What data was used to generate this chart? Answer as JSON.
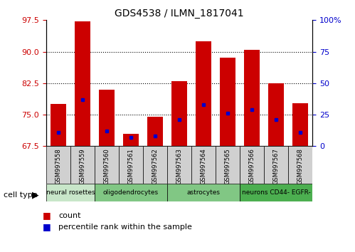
{
  "title": "GDS4538 / ILMN_1817041",
  "samples": [
    "GSM997558",
    "GSM997559",
    "GSM997560",
    "GSM997561",
    "GSM997562",
    "GSM997563",
    "GSM997564",
    "GSM997565",
    "GSM997566",
    "GSM997567",
    "GSM997568"
  ],
  "count_values": [
    77.5,
    97.2,
    81.0,
    70.5,
    74.5,
    83.0,
    92.5,
    88.5,
    90.5,
    82.5,
    77.8
  ],
  "percentile_values": [
    11,
    37,
    12,
    7,
    8,
    21,
    33,
    26,
    29,
    21,
    11
  ],
  "cell_types": [
    {
      "label": "neural rosettes",
      "start": 0,
      "end": 2,
      "color": "#c8e6c9"
    },
    {
      "label": "oligodendrocytes",
      "start": 2,
      "end": 5,
      "color": "#81c784"
    },
    {
      "label": "astrocytes",
      "start": 5,
      "end": 8,
      "color": "#81c784"
    },
    {
      "label": "neurons CD44- EGFR-",
      "start": 8,
      "end": 11,
      "color": "#4caf50"
    }
  ],
  "ylim_left": [
    67.5,
    97.5
  ],
  "yticks_left": [
    67.5,
    75.0,
    82.5,
    90.0,
    97.5
  ],
  "ylim_right": [
    0,
    100
  ],
  "yticks_right": [
    0,
    25,
    50,
    75,
    100
  ],
  "ytick_right_labels": [
    "0",
    "25",
    "50",
    "75",
    "100%"
  ],
  "bar_color": "#cc0000",
  "dot_color": "#0000cc",
  "bar_width": 0.65,
  "left_label_color": "#cc0000",
  "right_tick_color": "#0000cc",
  "legend_count_color": "#cc0000",
  "legend_dot_color": "#0000cc",
  "legend_count_label": "count",
  "legend_percentile_label": "percentile rank within the sample",
  "cell_type_label": "cell type"
}
